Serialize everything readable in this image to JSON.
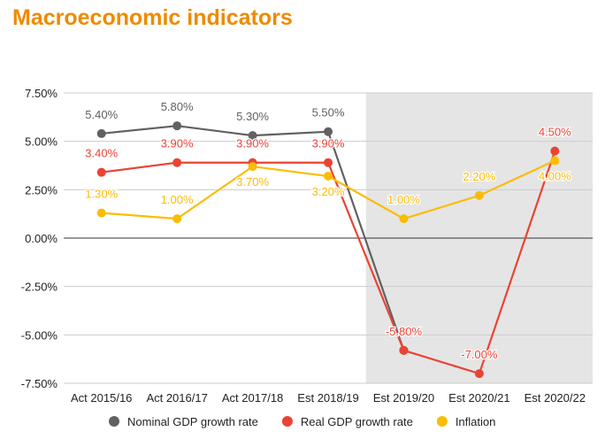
{
  "chart_data": {
    "type": "line",
    "title": "Macroeconomic indicators",
    "categories": [
      "Act 2015/16",
      "Act 2016/17",
      "Act 2017/18",
      "Est 2018/19",
      "Est 2019/20",
      "Est 2020/21",
      "Est 2020/22"
    ],
    "ylim": [
      -7.5,
      7.5
    ],
    "yticks": [
      7.5,
      5,
      2.5,
      0,
      -2.5,
      -5,
      -7.5
    ],
    "ytick_labels": [
      "7.50%",
      "5.00%",
      "2.50%",
      "0.00%",
      "-2.50%",
      "-5.00%",
      "-7.50%"
    ],
    "grid": true,
    "legend": "bottom",
    "shaded_region": [
      "Est 2019/20",
      "Est 2020/22"
    ],
    "shade_color": "#e5e5e5",
    "series": [
      {
        "name": "Nominal GDP growth rate",
        "color": "#616161",
        "values": [
          5.4,
          5.8,
          5.3,
          5.5,
          -5.8,
          null,
          null
        ],
        "labels": [
          "5.40%",
          "5.80%",
          "5.30%",
          "5.50%",
          "",
          "",
          ""
        ]
      },
      {
        "name": "Real GDP growth rate",
        "color": "#ea4335",
        "values": [
          3.4,
          3.9,
          3.9,
          3.9,
          -5.8,
          -7.0,
          4.5
        ],
        "labels": [
          "3.40%",
          "3.90%",
          "3.90%",
          "3.90%",
          "-5.80%",
          "-7.00%",
          "4.50%"
        ]
      },
      {
        "name": "Inflation",
        "color": "#fbbc04",
        "values": [
          1.3,
          1.0,
          3.7,
          3.2,
          1.0,
          2.2,
          4.0
        ],
        "labels": [
          "1.30%",
          "1.00%",
          "3.70%",
          "3.20%",
          "1.00%",
          "2.20%",
          "4.00%"
        ]
      }
    ]
  }
}
